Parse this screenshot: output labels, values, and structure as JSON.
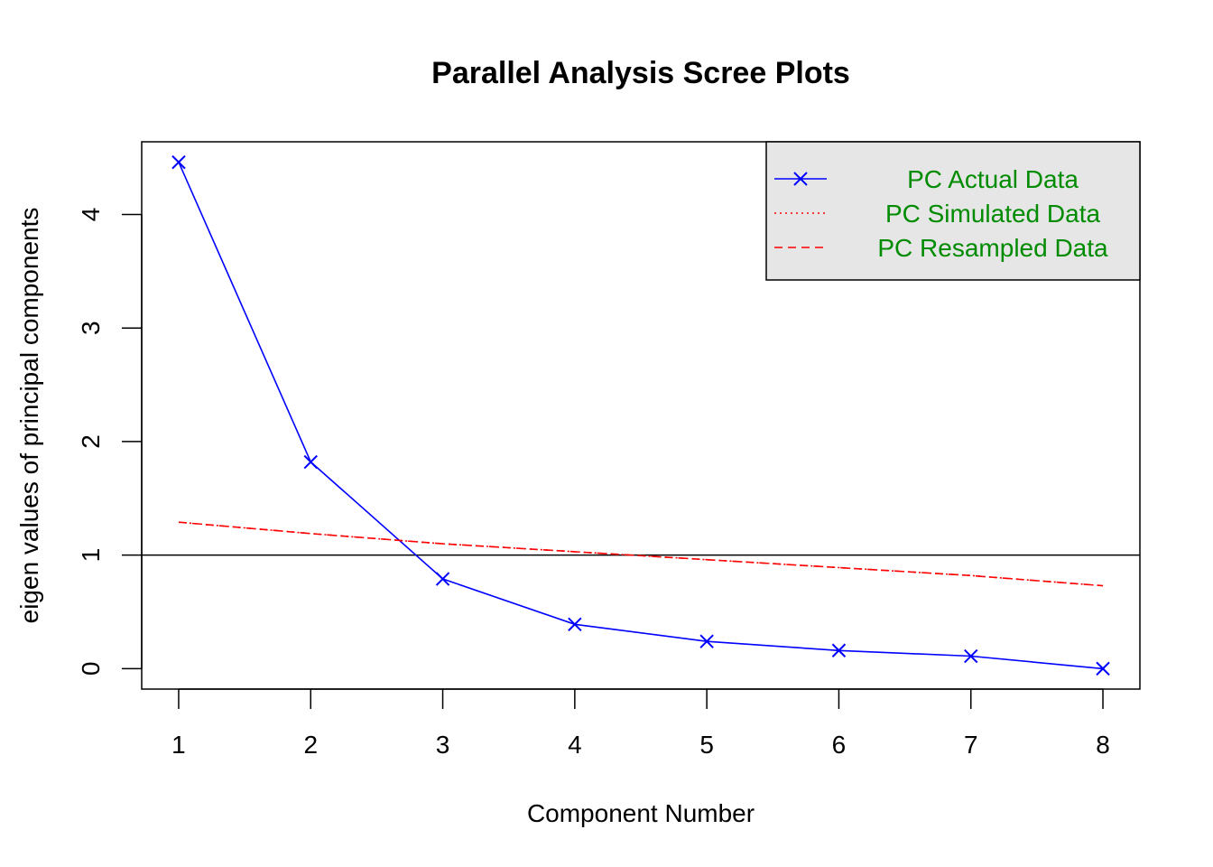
{
  "chart_data": {
    "type": "line",
    "title": "Parallel Analysis Scree Plots",
    "xlabel": "Component Number",
    "ylabel": "eigen values of principal components",
    "x": [
      1,
      2,
      3,
      4,
      5,
      6,
      7,
      8
    ],
    "xlim": [
      0.72,
      8.28
    ],
    "ylim": [
      -0.18,
      4.64
    ],
    "x_ticks": [
      "1",
      "2",
      "3",
      "4",
      "5",
      "6",
      "7",
      "8"
    ],
    "y_ticks": [
      "0",
      "1",
      "2",
      "3",
      "4"
    ],
    "reference_line": 1,
    "series": [
      {
        "name": "PC  Actual Data",
        "values": [
          4.46,
          1.82,
          0.79,
          0.39,
          0.24,
          0.16,
          0.11,
          0.0
        ],
        "color": "#0000ff",
        "style": "solid",
        "marker": "x"
      },
      {
        "name": "PC  Simulated Data",
        "values": [
          1.29,
          1.19,
          1.1,
          1.03,
          0.96,
          0.89,
          0.82,
          0.73
        ],
        "color": "#ff0000",
        "style": "dotted"
      },
      {
        "name": "PC  Resampled Data",
        "values": [
          1.29,
          1.19,
          1.1,
          1.03,
          0.96,
          0.89,
          0.82,
          0.73
        ],
        "color": "#ff0000",
        "style": "dashed"
      }
    ],
    "legend_position": "top-right",
    "grid": false
  }
}
